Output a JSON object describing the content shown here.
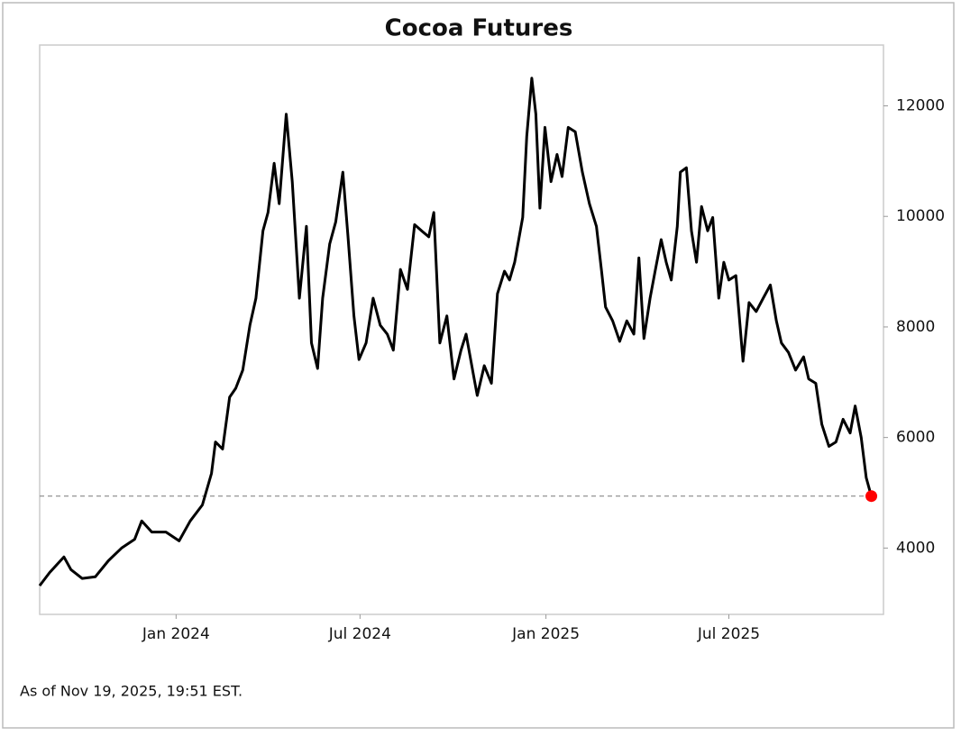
{
  "chart_data": {
    "type": "line",
    "title": "Cocoa Futures",
    "footnote": "As of Nov 19, 2025, 19:51 EST.",
    "x": [
      "2023-08-19",
      "2023-08-29",
      "2023-09-12",
      "2023-09-19",
      "2023-09-30",
      "2023-10-13",
      "2023-10-26",
      "2023-11-08",
      "2023-11-21",
      "2023-11-28",
      "2023-12-08",
      "2023-12-22",
      "2024-01-04",
      "2024-01-15",
      "2024-01-27",
      "2024-02-05",
      "2024-02-09",
      "2024-02-16",
      "2024-02-23",
      "2024-02-29",
      "2024-03-07",
      "2024-03-14",
      "2024-03-20",
      "2024-03-27",
      "2024-04-01",
      "2024-04-07",
      "2024-04-12",
      "2024-04-19",
      "2024-04-25",
      "2024-05-02",
      "2024-05-09",
      "2024-05-14",
      "2024-05-20",
      "2024-05-25",
      "2024-06-01",
      "2024-06-07",
      "2024-06-14",
      "2024-06-19",
      "2024-06-25",
      "2024-06-30",
      "2024-07-07",
      "2024-07-14",
      "2024-07-21",
      "2024-07-28",
      "2024-08-03",
      "2024-08-10",
      "2024-08-17",
      "2024-08-24",
      "2024-08-31",
      "2024-09-07",
      "2024-09-12",
      "2024-09-18",
      "2024-09-25",
      "2024-10-02",
      "2024-10-09",
      "2024-10-14",
      "2024-10-22",
      "2024-10-25",
      "2024-11-01",
      "2024-11-08",
      "2024-11-14",
      "2024-11-21",
      "2024-11-26",
      "2024-12-01",
      "2024-12-09",
      "2024-12-13",
      "2024-12-18",
      "2024-12-22",
      "2024-12-26",
      "2024-12-31",
      "2025-01-06",
      "2025-01-12",
      "2025-01-17",
      "2025-01-23",
      "2025-01-30",
      "2025-02-06",
      "2025-02-13",
      "2025-02-20",
      "2025-02-25",
      "2025-03-01",
      "2025-03-08",
      "2025-03-15",
      "2025-03-22",
      "2025-03-29",
      "2025-04-03",
      "2025-04-08",
      "2025-04-14",
      "2025-04-19",
      "2025-04-25",
      "2025-04-30",
      "2025-05-05",
      "2025-05-11",
      "2025-05-14",
      "2025-05-20",
      "2025-05-25",
      "2025-05-30",
      "2025-06-04",
      "2025-06-10",
      "2025-06-15",
      "2025-06-21",
      "2025-06-26",
      "2025-07-01",
      "2025-07-08",
      "2025-07-15",
      "2025-07-21",
      "2025-07-28",
      "2025-08-04",
      "2025-08-11",
      "2025-08-17",
      "2025-08-22",
      "2025-08-29",
      "2025-09-05",
      "2025-09-13",
      "2025-09-18",
      "2025-09-25",
      "2025-10-01",
      "2025-10-08",
      "2025-10-15",
      "2025-10-22",
      "2025-10-29",
      "2025-11-03",
      "2025-11-09",
      "2025-11-14",
      "2025-11-19"
    ],
    "series": [
      {
        "color": "#000000",
        "values": [
          3320,
          3560,
          3840,
          3610,
          3450,
          3480,
          3770,
          4000,
          4160,
          4490,
          4290,
          4290,
          4130,
          4490,
          4780,
          5350,
          5920,
          5790,
          6730,
          6890,
          7220,
          8030,
          8520,
          9740,
          10070,
          10960,
          10230,
          11850,
          10630,
          8520,
          9820,
          7710,
          7250,
          8520,
          9500,
          9900,
          10800,
          9660,
          8200,
          7410,
          7710,
          8520,
          8030,
          7870,
          7580,
          9040,
          8680,
          9850,
          9740,
          9630,
          10070,
          7710,
          8200,
          7060,
          7580,
          7870,
          7060,
          6760,
          7300,
          6980,
          8600,
          9010,
          8850,
          9170,
          9980,
          11450,
          12500,
          11850,
          10150,
          11610,
          10630,
          11120,
          10720,
          11610,
          11530,
          10800,
          10230,
          9820,
          9010,
          8360,
          8110,
          7740,
          8110,
          7870,
          9250,
          7790,
          8520,
          9010,
          9580,
          9170,
          8850,
          9820,
          10800,
          10880,
          9740,
          9170,
          10180,
          9740,
          9980,
          8520,
          9170,
          8850,
          8930,
          7380,
          8440,
          8280,
          8520,
          8760,
          8110,
          7710,
          7540,
          7220,
          7460,
          7060,
          6980,
          6240,
          5840,
          5920,
          6330,
          6080,
          6570,
          6000,
          5270,
          4940
        ]
      }
    ],
    "xlim": [
      "2023-08-19",
      "2025-12-01"
    ],
    "xticks": [
      {
        "value": "2024-01-01",
        "label": "Jan 2024"
      },
      {
        "value": "2024-07-01",
        "label": "Jul 2024"
      },
      {
        "value": "2025-01-01",
        "label": "Jan 2025"
      },
      {
        "value": "2025-07-01",
        "label": "Jul 2025"
      }
    ],
    "ylim": [
      2800,
      13100
    ],
    "yticks": [
      4000,
      6000,
      8000,
      10000,
      12000
    ],
    "y_axis_side": "right",
    "grid": false,
    "last_value_line": true,
    "last_point_color": "#ff0000"
  }
}
